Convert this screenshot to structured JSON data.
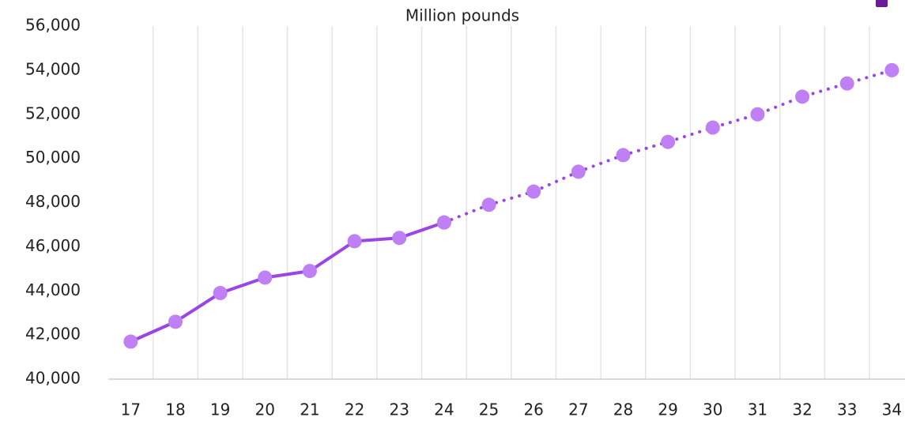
{
  "chart_data": {
    "type": "line",
    "title": "Million pounds",
    "categories": [
      "17",
      "18",
      "19",
      "20",
      "21",
      "22",
      "23",
      "24",
      "25",
      "26",
      "27",
      "28",
      "29",
      "30",
      "31",
      "32",
      "33",
      "34"
    ],
    "series": [
      {
        "color": "#9b45e4",
        "marker_color": "#bf80f5",
        "dash": "solid",
        "values": [
          41700,
          42600,
          43900,
          44600,
          44900,
          46250,
          46400,
          47100,
          null,
          null,
          null,
          null,
          null,
          null,
          null,
          null,
          null,
          null
        ]
      },
      {
        "color": "#9b45e4",
        "marker_color": "#bf80f5",
        "dash": "dotted",
        "values": [
          null,
          null,
          null,
          null,
          null,
          null,
          null,
          47100,
          47900,
          48500,
          49400,
          50150,
          50750,
          51400,
          52000,
          52800,
          53400,
          54000
        ]
      }
    ],
    "ylim": [
      40000,
      56000
    ],
    "yticks": [
      {
        "value": 40000,
        "label": "40,000"
      },
      {
        "value": 42000,
        "label": "42,000"
      },
      {
        "value": 44000,
        "label": "44,000"
      },
      {
        "value": 46000,
        "label": "46,000"
      },
      {
        "value": 48000,
        "label": "48,000"
      },
      {
        "value": 50000,
        "label": "50,000"
      },
      {
        "value": 52000,
        "label": "52,000"
      },
      {
        "value": 54000,
        "label": "54,000"
      },
      {
        "value": 56000,
        "label": "56,000"
      }
    ],
    "grid": false
  }
}
